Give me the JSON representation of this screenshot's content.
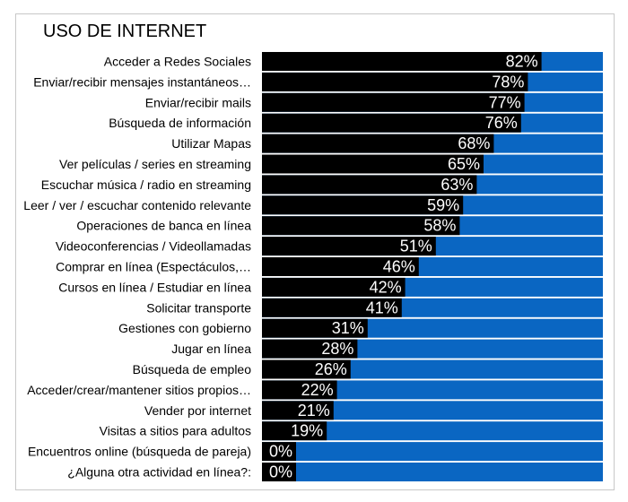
{
  "title": "USO DE INTERNET",
  "colors": {
    "bar": "#000000",
    "background_bar": "#0a66c2",
    "label_text": "#ffffff"
  },
  "chart_data": {
    "type": "bar",
    "orientation": "horizontal",
    "stacked": true,
    "title": "USO DE INTERNET",
    "xlim": [
      0,
      100
    ],
    "grid": false,
    "categories": [
      "Acceder a Redes Sociales",
      "Enviar/recibir mensajes instantáneos…",
      "Enviar/recibir mails",
      "Búsqueda de información",
      "Utilizar Mapas",
      "Ver películas / series en streaming",
      "Escuchar música / radio en streaming",
      "Leer / ver / escuchar contenido relevante",
      "Operaciones de banca en línea",
      "Videoconferencias / Videollamadas",
      "Comprar en línea (Espectáculos,…",
      "Cursos en línea / Estudiar en línea",
      "Solicitar transporte",
      "Gestiones con gobierno",
      "Jugar en línea",
      "Búsqueda de empleo",
      "Acceder/crear/mantener sitios propios…",
      "Vender por internet",
      "Visitas a sitios para adultos",
      "Encuentros online (búsqueda de pareja)",
      "¿Alguna otra actividad en línea?:"
    ],
    "values": [
      82,
      78,
      77,
      76,
      68,
      65,
      63,
      59,
      58,
      51,
      46,
      42,
      41,
      31,
      28,
      26,
      22,
      21,
      19,
      0,
      0
    ],
    "labels": [
      "82%",
      "78%",
      "77%",
      "76%",
      "68%",
      "65%",
      "63%",
      "59%",
      "58%",
      "51%",
      "46%",
      "42%",
      "41%",
      "31%",
      "28%",
      "26%",
      "22%",
      "21%",
      "19%",
      "0%",
      "0%"
    ]
  }
}
